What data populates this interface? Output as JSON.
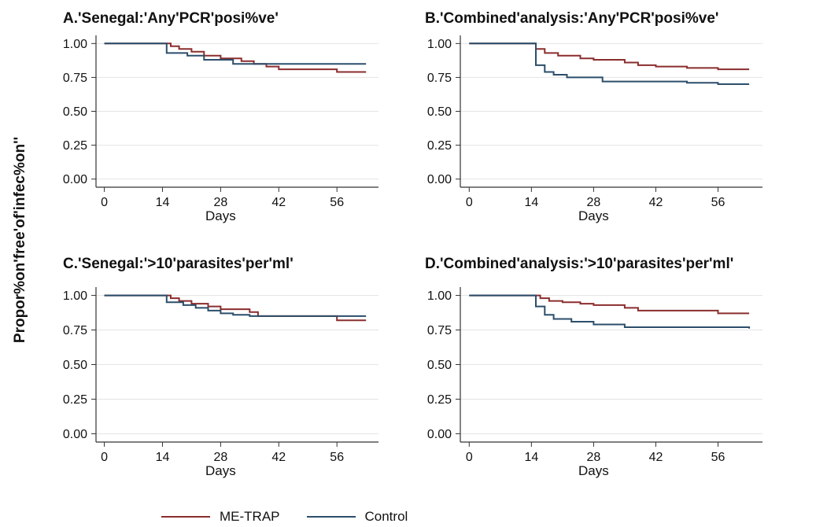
{
  "chart_data": [
    {
      "type": "line",
      "title": "A.'Senegal:'Any'PCR'posi%ve'",
      "xlabel": "Days",
      "ylabel": "Propor%on'free'of'infec%on''",
      "xticks": [
        0,
        14,
        28,
        42,
        56
      ],
      "yticks": [
        "0.00",
        "0.25",
        "0.50",
        "0.75",
        "1.00"
      ],
      "xlim": [
        -2,
        66
      ],
      "ylim": [
        -0.06,
        1.06
      ],
      "grid": true,
      "legend": "bottom",
      "series": [
        {
          "name": "ME-TRAP",
          "color": "#8b2d2d",
          "x": [
            0,
            14,
            16,
            18,
            21,
            24,
            28,
            33,
            36,
            39,
            42,
            56,
            63
          ],
          "y": [
            1.0,
            1.0,
            0.98,
            0.96,
            0.94,
            0.91,
            0.89,
            0.87,
            0.85,
            0.83,
            0.81,
            0.79,
            0.79
          ]
        },
        {
          "name": "Control",
          "color": "#2b4e6b",
          "x": [
            0,
            14,
            15,
            20,
            24,
            31,
            63
          ],
          "y": [
            1.0,
            1.0,
            0.93,
            0.91,
            0.88,
            0.85,
            0.85
          ]
        }
      ]
    },
    {
      "type": "line",
      "title": "B.'Combined'analysis:'Any'PCR'posi%ve'",
      "xlabel": "Days",
      "ylabel": "",
      "xticks": [
        0,
        14,
        28,
        42,
        56
      ],
      "yticks": [
        "0.00",
        "0.25",
        "0.50",
        "0.75",
        "1.00"
      ],
      "xlim": [
        -2,
        66
      ],
      "ylim": [
        -0.06,
        1.06
      ],
      "grid": true,
      "legend": "bottom",
      "series": [
        {
          "name": "ME-TRAP",
          "color": "#8b2d2d",
          "x": [
            0,
            14,
            15,
            17,
            20,
            25,
            28,
            35,
            38,
            42,
            49,
            56,
            63
          ],
          "y": [
            1.0,
            1.0,
            0.96,
            0.93,
            0.91,
            0.89,
            0.88,
            0.86,
            0.84,
            0.83,
            0.82,
            0.81,
            0.81
          ]
        },
        {
          "name": "Control",
          "color": "#2b4e6b",
          "x": [
            0,
            14,
            15,
            17,
            19,
            22,
            30,
            49,
            56,
            63
          ],
          "y": [
            1.0,
            1.0,
            0.84,
            0.79,
            0.77,
            0.75,
            0.72,
            0.71,
            0.7,
            0.7
          ]
        }
      ]
    },
    {
      "type": "line",
      "title": "C.'Senegal:'>10'parasites'per'ml'",
      "xlabel": "Days",
      "ylabel": "",
      "xticks": [
        0,
        14,
        28,
        42,
        56
      ],
      "yticks": [
        "0.00",
        "0.25",
        "0.50",
        "0.75",
        "1.00"
      ],
      "xlim": [
        -2,
        66
      ],
      "ylim": [
        -0.06,
        1.06
      ],
      "grid": true,
      "legend": "bottom",
      "series": [
        {
          "name": "ME-TRAP",
          "color": "#8b2d2d",
          "x": [
            0,
            14,
            16,
            18,
            21,
            25,
            28,
            35,
            37,
            56,
            63
          ],
          "y": [
            1.0,
            1.0,
            0.98,
            0.96,
            0.94,
            0.92,
            0.9,
            0.88,
            0.85,
            0.82,
            0.82
          ]
        },
        {
          "name": "Control",
          "color": "#2b4e6b",
          "x": [
            0,
            14,
            15,
            19,
            22,
            25,
            28,
            31,
            35,
            63
          ],
          "y": [
            1.0,
            1.0,
            0.95,
            0.93,
            0.91,
            0.89,
            0.87,
            0.86,
            0.85,
            0.85
          ]
        }
      ]
    },
    {
      "type": "line",
      "title": "D.'Combined'analysis:'>10'parasites'per'ml'",
      "xlabel": "Days",
      "ylabel": "",
      "xticks": [
        0,
        14,
        28,
        42,
        56
      ],
      "yticks": [
        "0.00",
        "0.25",
        "0.50",
        "0.75",
        "1.00"
      ],
      "xlim": [
        -2,
        66
      ],
      "ylim": [
        -0.06,
        1.06
      ],
      "grid": true,
      "legend": "bottom",
      "series": [
        {
          "name": "ME-TRAP",
          "color": "#8b2d2d",
          "x": [
            0,
            14,
            16,
            18,
            21,
            25,
            28,
            35,
            38,
            56,
            63
          ],
          "y": [
            1.0,
            1.0,
            0.98,
            0.96,
            0.95,
            0.94,
            0.93,
            0.91,
            0.89,
            0.87,
            0.87
          ]
        },
        {
          "name": "Control",
          "color": "#2b4e6b",
          "x": [
            0,
            14,
            15,
            17,
            19,
            23,
            28,
            35,
            63
          ],
          "y": [
            1.0,
            1.0,
            0.92,
            0.86,
            0.83,
            0.81,
            0.79,
            0.77,
            0.76
          ]
        }
      ]
    }
  ],
  "shared_ylabel": "Propor%on'free'of'infec%on''",
  "legend": [
    {
      "label": "ME-TRAP",
      "color": "#8b2d2d"
    },
    {
      "label": "Control",
      "color": "#2b4e6b"
    }
  ]
}
